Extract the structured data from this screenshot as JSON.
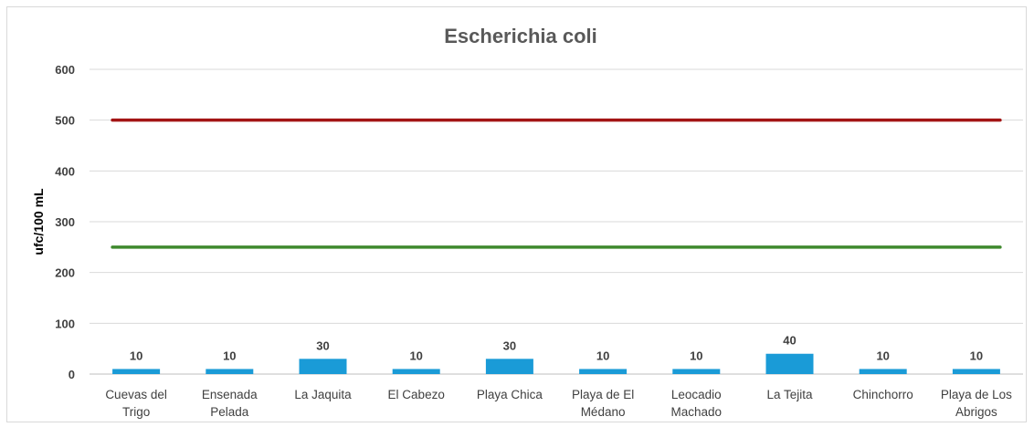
{
  "chart_data": {
    "type": "bar",
    "title": "Escherichia coli",
    "xlabel": "",
    "ylabel": "ufc/100 mL",
    "ylim": [
      0,
      600
    ],
    "yticks": [
      0,
      100,
      200,
      300,
      400,
      500,
      600
    ],
    "grid": true,
    "categories": [
      [
        "Cuevas del",
        "Trigo"
      ],
      [
        "Ensenada",
        "Pelada"
      ],
      [
        "La Jaquita"
      ],
      [
        "El Cabezo"
      ],
      [
        "Playa Chica"
      ],
      [
        "Playa de El",
        "Médano"
      ],
      [
        "Leocadio",
        "Machado"
      ],
      [
        "La Tejita"
      ],
      [
        "Chinchorro"
      ],
      [
        "Playa de Los",
        "Abrigos"
      ]
    ],
    "series": [
      {
        "values": [
          10,
          10,
          30,
          10,
          30,
          10,
          10,
          40,
          10,
          10
        ],
        "color": "#1a9bd7"
      }
    ],
    "reference_lines": [
      {
        "value": 500,
        "color": "#a31515"
      },
      {
        "value": 250,
        "color": "#3f8a2e"
      }
    ]
  }
}
